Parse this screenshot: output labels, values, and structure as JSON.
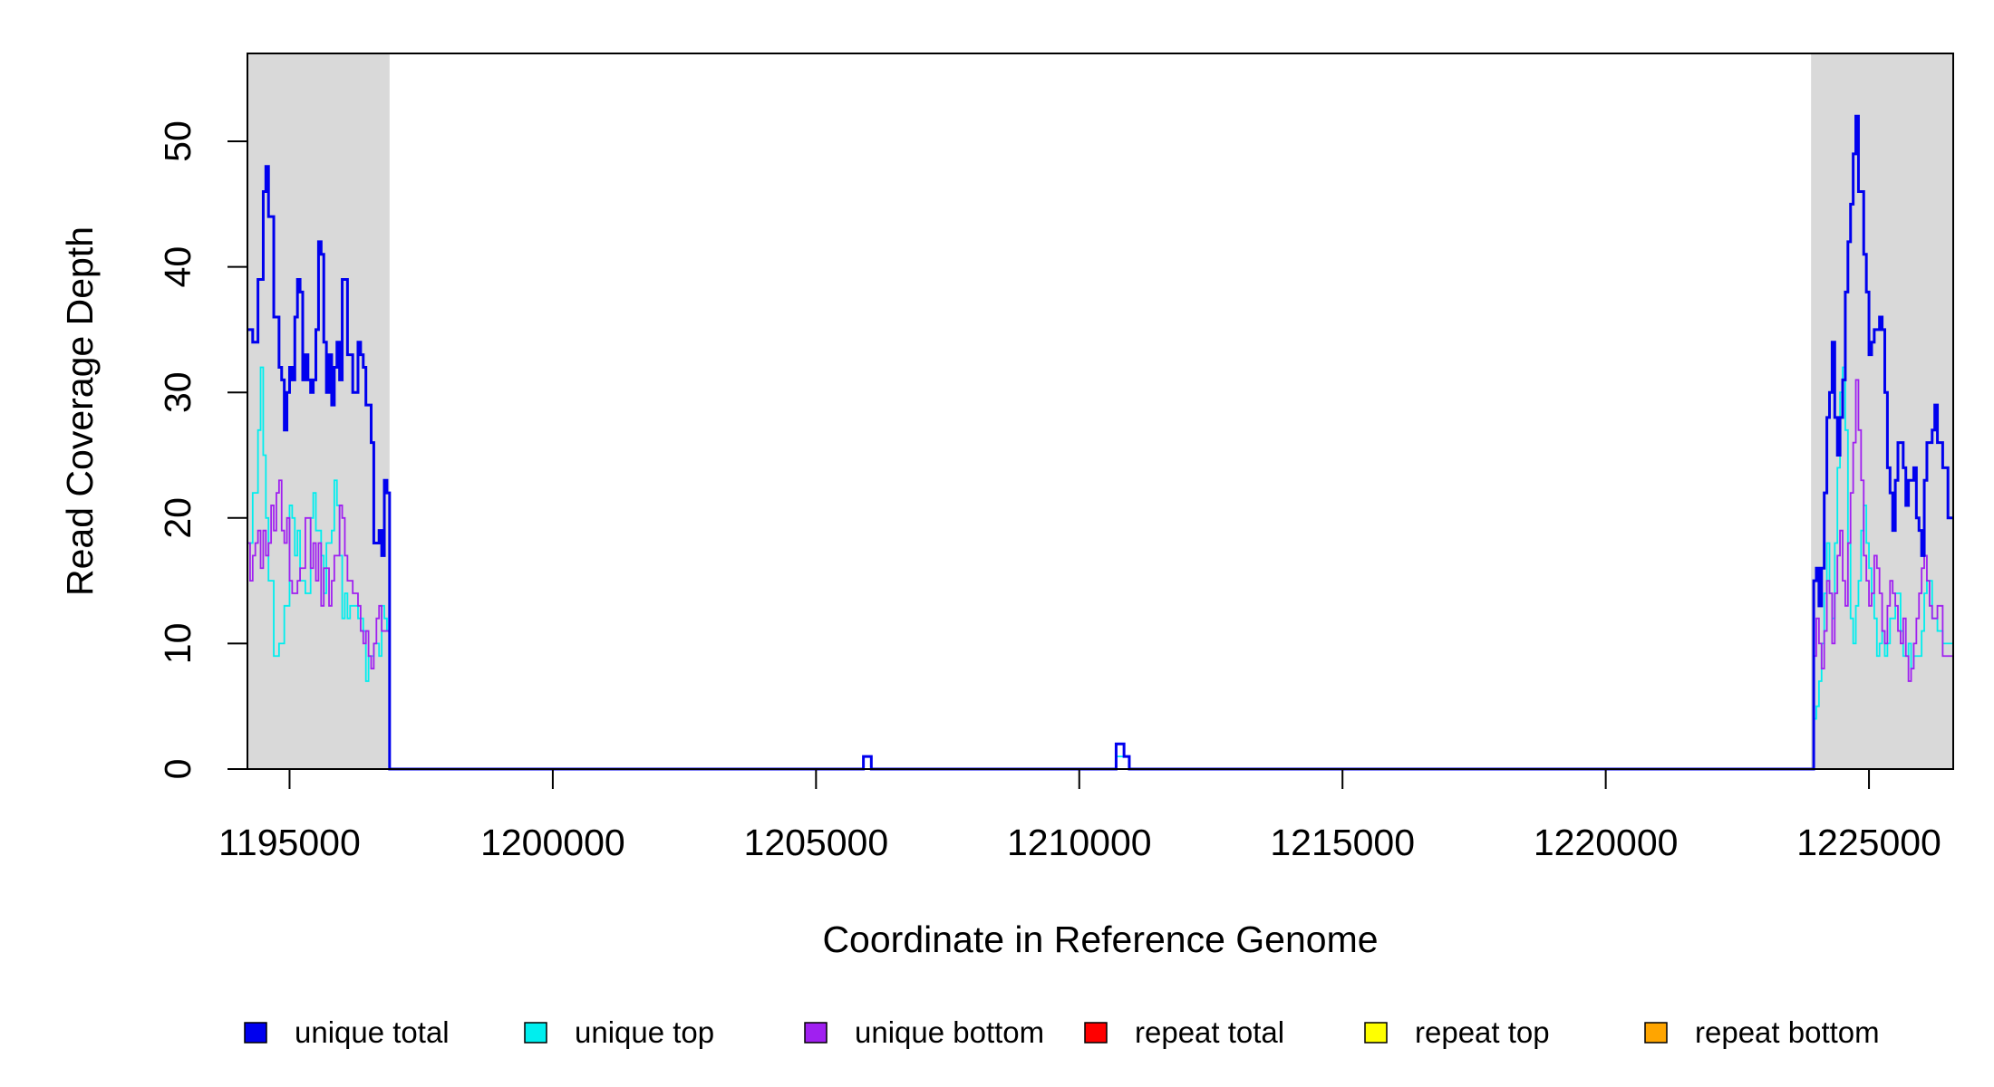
{
  "chart_data": {
    "type": "line",
    "title": "",
    "xlabel": "Coordinate in Reference Genome",
    "ylabel": "Read Coverage Depth",
    "xlim": [
      1194200,
      1226600
    ],
    "ylim": [
      0,
      57
    ],
    "x_ticks": [
      1195000,
      1200000,
      1205000,
      1210000,
      1215000,
      1220000,
      1225000
    ],
    "y_ticks": [
      0,
      10,
      20,
      30,
      40,
      50
    ],
    "shaded_regions": [
      [
        1194200,
        1196900
      ],
      [
        1223900,
        1226600
      ]
    ],
    "legend_position": "bottom",
    "legend": [
      {
        "label": "unique total",
        "color": "#0000ee"
      },
      {
        "label": "unique top",
        "color": "#00eeee"
      },
      {
        "label": "unique bottom",
        "color": "#a020f0"
      },
      {
        "label": "repeat total",
        "color": "#ff0000"
      },
      {
        "label": "repeat top",
        "color": "#ffff00"
      },
      {
        "label": "repeat bottom",
        "color": "#ffa500"
      }
    ],
    "series": [
      {
        "name": "unique total",
        "color": "#0000ee",
        "points": [
          [
            1194200,
            35
          ],
          [
            1194300,
            34
          ],
          [
            1194400,
            39
          ],
          [
            1194500,
            46
          ],
          [
            1194550,
            48
          ],
          [
            1194600,
            44
          ],
          [
            1194700,
            36
          ],
          [
            1194800,
            32
          ],
          [
            1194850,
            31
          ],
          [
            1194900,
            27
          ],
          [
            1194950,
            30
          ],
          [
            1195000,
            32
          ],
          [
            1195050,
            31
          ],
          [
            1195100,
            36
          ],
          [
            1195150,
            39
          ],
          [
            1195200,
            38
          ],
          [
            1195250,
            31
          ],
          [
            1195300,
            33
          ],
          [
            1195350,
            31
          ],
          [
            1195400,
            30
          ],
          [
            1195450,
            31
          ],
          [
            1195500,
            35
          ],
          [
            1195550,
            42
          ],
          [
            1195600,
            41
          ],
          [
            1195650,
            34
          ],
          [
            1195700,
            30
          ],
          [
            1195750,
            33
          ],
          [
            1195800,
            29
          ],
          [
            1195850,
            32
          ],
          [
            1195900,
            34
          ],
          [
            1195950,
            31
          ],
          [
            1196000,
            39
          ],
          [
            1196100,
            33
          ],
          [
            1196200,
            30
          ],
          [
            1196300,
            34
          ],
          [
            1196350,
            33
          ],
          [
            1196400,
            32
          ],
          [
            1196450,
            29
          ],
          [
            1196550,
            26
          ],
          [
            1196600,
            18
          ],
          [
            1196700,
            19
          ],
          [
            1196750,
            17
          ],
          [
            1196800,
            23
          ],
          [
            1196850,
            22
          ],
          [
            1196900,
            0
          ],
          [
            1205850,
            0
          ],
          [
            1205900,
            1
          ],
          [
            1206050,
            0
          ],
          [
            1210650,
            0
          ],
          [
            1210700,
            2
          ],
          [
            1210850,
            1
          ],
          [
            1210950,
            0
          ],
          [
            1223900,
            0
          ],
          [
            1223950,
            15
          ],
          [
            1224000,
            16
          ],
          [
            1224050,
            13
          ],
          [
            1224100,
            16
          ],
          [
            1224150,
            22
          ],
          [
            1224200,
            28
          ],
          [
            1224250,
            30
          ],
          [
            1224300,
            34
          ],
          [
            1224350,
            28
          ],
          [
            1224400,
            25
          ],
          [
            1224450,
            28
          ],
          [
            1224500,
            31
          ],
          [
            1224550,
            38
          ],
          [
            1224600,
            42
          ],
          [
            1224650,
            45
          ],
          [
            1224700,
            49
          ],
          [
            1224750,
            52
          ],
          [
            1224800,
            46
          ],
          [
            1224900,
            41
          ],
          [
            1224950,
            38
          ],
          [
            1225000,
            33
          ],
          [
            1225050,
            34
          ],
          [
            1225100,
            35
          ],
          [
            1225200,
            36
          ],
          [
            1225250,
            35
          ],
          [
            1225300,
            30
          ],
          [
            1225350,
            24
          ],
          [
            1225400,
            22
          ],
          [
            1225450,
            19
          ],
          [
            1225500,
            23
          ],
          [
            1225550,
            26
          ],
          [
            1225650,
            24
          ],
          [
            1225700,
            21
          ],
          [
            1225750,
            23
          ],
          [
            1225850,
            24
          ],
          [
            1225900,
            20
          ],
          [
            1225950,
            19
          ],
          [
            1226000,
            17
          ],
          [
            1226050,
            23
          ],
          [
            1226100,
            26
          ],
          [
            1226200,
            27
          ],
          [
            1226250,
            29
          ],
          [
            1226300,
            26
          ],
          [
            1226400,
            24
          ],
          [
            1226500,
            20
          ],
          [
            1226600,
            20
          ]
        ]
      },
      {
        "name": "unique top",
        "color": "#00eeee",
        "points": [
          [
            1194200,
            18
          ],
          [
            1194300,
            22
          ],
          [
            1194400,
            27
          ],
          [
            1194450,
            32
          ],
          [
            1194500,
            25
          ],
          [
            1194550,
            20
          ],
          [
            1194600,
            15
          ],
          [
            1194700,
            9
          ],
          [
            1194800,
            10
          ],
          [
            1194900,
            13
          ],
          [
            1195000,
            21
          ],
          [
            1195050,
            20
          ],
          [
            1195100,
            17
          ],
          [
            1195150,
            19
          ],
          [
            1195200,
            15
          ],
          [
            1195300,
            14
          ],
          [
            1195400,
            20
          ],
          [
            1195450,
            22
          ],
          [
            1195500,
            19
          ],
          [
            1195600,
            17
          ],
          [
            1195650,
            14
          ],
          [
            1195700,
            18
          ],
          [
            1195800,
            19
          ],
          [
            1195850,
            23
          ],
          [
            1195900,
            21
          ],
          [
            1195950,
            17
          ],
          [
            1196000,
            12
          ],
          [
            1196050,
            14
          ],
          [
            1196100,
            12
          ],
          [
            1196150,
            13
          ],
          [
            1196300,
            12
          ],
          [
            1196400,
            11
          ],
          [
            1196450,
            7
          ],
          [
            1196500,
            9
          ],
          [
            1196600,
            10
          ],
          [
            1196700,
            9
          ],
          [
            1196750,
            13
          ],
          [
            1196800,
            12
          ],
          [
            1196850,
            11
          ],
          [
            1196900,
            0
          ],
          [
            1205850,
            0
          ],
          [
            1205900,
            1
          ],
          [
            1206050,
            0
          ],
          [
            1210650,
            0
          ],
          [
            1210700,
            1
          ],
          [
            1210950,
            0
          ],
          [
            1223900,
            0
          ],
          [
            1223950,
            4
          ],
          [
            1224000,
            5
          ],
          [
            1224050,
            7
          ],
          [
            1224100,
            10
          ],
          [
            1224150,
            14
          ],
          [
            1224200,
            18
          ],
          [
            1224250,
            14
          ],
          [
            1224300,
            12
          ],
          [
            1224350,
            18
          ],
          [
            1224400,
            24
          ],
          [
            1224450,
            30
          ],
          [
            1224500,
            32
          ],
          [
            1224550,
            27
          ],
          [
            1224600,
            18
          ],
          [
            1224650,
            12
          ],
          [
            1224700,
            10
          ],
          [
            1224750,
            13
          ],
          [
            1224800,
            15
          ],
          [
            1224850,
            19
          ],
          [
            1224900,
            21
          ],
          [
            1224950,
            18
          ],
          [
            1225000,
            16
          ],
          [
            1225050,
            14
          ],
          [
            1225100,
            12
          ],
          [
            1225150,
            9
          ],
          [
            1225200,
            10
          ],
          [
            1225250,
            11
          ],
          [
            1225300,
            9
          ],
          [
            1225350,
            10
          ],
          [
            1225400,
            12
          ],
          [
            1225500,
            14
          ],
          [
            1225600,
            11
          ],
          [
            1225650,
            9
          ],
          [
            1225750,
            10
          ],
          [
            1225800,
            8
          ],
          [
            1225850,
            9
          ],
          [
            1226000,
            11
          ],
          [
            1226050,
            14
          ],
          [
            1226100,
            15
          ],
          [
            1226200,
            12
          ],
          [
            1226300,
            11
          ],
          [
            1226400,
            10
          ],
          [
            1226500,
            10
          ],
          [
            1226600,
            10
          ]
        ]
      },
      {
        "name": "unique bottom",
        "color": "#a020f0",
        "points": [
          [
            1194200,
            18
          ],
          [
            1194250,
            15
          ],
          [
            1194300,
            17
          ],
          [
            1194350,
            18
          ],
          [
            1194400,
            19
          ],
          [
            1194450,
            16
          ],
          [
            1194500,
            19
          ],
          [
            1194550,
            17
          ],
          [
            1194600,
            18
          ],
          [
            1194650,
            21
          ],
          [
            1194700,
            19
          ],
          [
            1194750,
            22
          ],
          [
            1194800,
            23
          ],
          [
            1194850,
            19
          ],
          [
            1194900,
            18
          ],
          [
            1194950,
            20
          ],
          [
            1195000,
            15
          ],
          [
            1195050,
            14
          ],
          [
            1195150,
            15
          ],
          [
            1195200,
            16
          ],
          [
            1195300,
            20
          ],
          [
            1195400,
            16
          ],
          [
            1195450,
            18
          ],
          [
            1195500,
            15
          ],
          [
            1195550,
            18
          ],
          [
            1195600,
            13
          ],
          [
            1195650,
            16
          ],
          [
            1195750,
            13
          ],
          [
            1195800,
            15
          ],
          [
            1195850,
            17
          ],
          [
            1195950,
            21
          ],
          [
            1196000,
            20
          ],
          [
            1196050,
            17
          ],
          [
            1196100,
            15
          ],
          [
            1196200,
            14
          ],
          [
            1196300,
            13
          ],
          [
            1196350,
            11
          ],
          [
            1196400,
            10
          ],
          [
            1196450,
            11
          ],
          [
            1196500,
            9
          ],
          [
            1196550,
            8
          ],
          [
            1196600,
            10
          ],
          [
            1196650,
            12
          ],
          [
            1196700,
            13
          ],
          [
            1196750,
            11
          ],
          [
            1196900,
            0
          ],
          [
            1223900,
            0
          ],
          [
            1223950,
            9
          ],
          [
            1224000,
            12
          ],
          [
            1224050,
            10
          ],
          [
            1224100,
            8
          ],
          [
            1224150,
            11
          ],
          [
            1224200,
            15
          ],
          [
            1224250,
            14
          ],
          [
            1224300,
            10
          ],
          [
            1224350,
            14
          ],
          [
            1224400,
            17
          ],
          [
            1224450,
            19
          ],
          [
            1224500,
            15
          ],
          [
            1224550,
            13
          ],
          [
            1224600,
            18
          ],
          [
            1224650,
            22
          ],
          [
            1224700,
            26
          ],
          [
            1224750,
            31
          ],
          [
            1224800,
            27
          ],
          [
            1224850,
            23
          ],
          [
            1224900,
            17
          ],
          [
            1224950,
            15
          ],
          [
            1225000,
            13
          ],
          [
            1225050,
            14
          ],
          [
            1225100,
            17
          ],
          [
            1225150,
            16
          ],
          [
            1225200,
            14
          ],
          [
            1225250,
            11
          ],
          [
            1225300,
            10
          ],
          [
            1225350,
            13
          ],
          [
            1225400,
            15
          ],
          [
            1225450,
            14
          ],
          [
            1225500,
            13
          ],
          [
            1225550,
            11
          ],
          [
            1225600,
            10
          ],
          [
            1225650,
            12
          ],
          [
            1225700,
            9
          ],
          [
            1225750,
            7
          ],
          [
            1225800,
            8
          ],
          [
            1225850,
            10
          ],
          [
            1225900,
            12
          ],
          [
            1225950,
            14
          ],
          [
            1226000,
            16
          ],
          [
            1226050,
            17
          ],
          [
            1226100,
            15
          ],
          [
            1226150,
            13
          ],
          [
            1226200,
            12
          ],
          [
            1226300,
            13
          ],
          [
            1226400,
            9
          ],
          [
            1226500,
            9
          ],
          [
            1226600,
            9
          ]
        ]
      },
      {
        "name": "repeat total",
        "color": "#ff0000",
        "points": [
          [
            1194200,
            0
          ],
          [
            1226600,
            0
          ]
        ]
      },
      {
        "name": "repeat top",
        "color": "#ffff00",
        "points": [
          [
            1194200,
            0
          ],
          [
            1226600,
            0
          ]
        ]
      },
      {
        "name": "repeat bottom",
        "color": "#ffa500",
        "points": [
          [
            1194200,
            0
          ],
          [
            1226600,
            0
          ]
        ]
      }
    ]
  }
}
